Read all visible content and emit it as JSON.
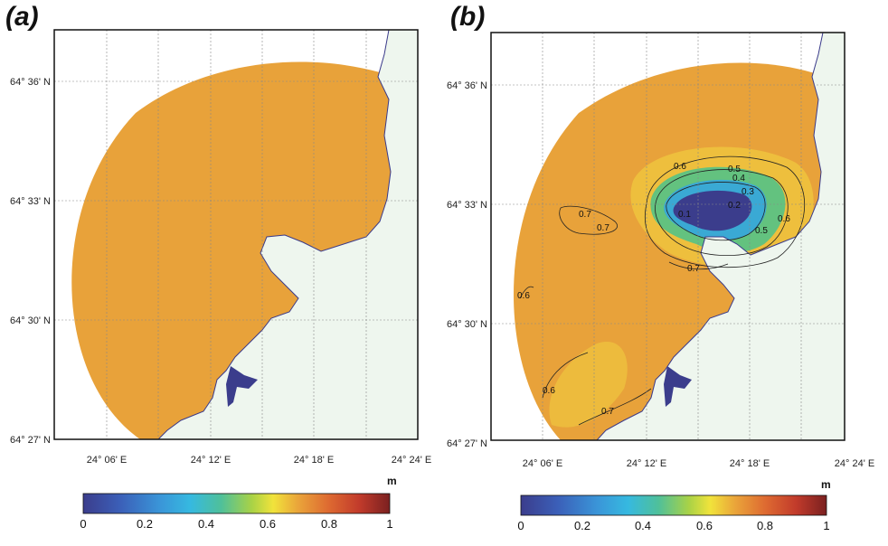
{
  "panels": [
    {
      "label": "(a)",
      "lat_ticks": [
        "64° 36' N",
        "64° 33' N",
        "64° 30' N",
        "64° 27' N"
      ],
      "lon_ticks": [
        "24° 06' E",
        "24° 12' E",
        "24° 18' E",
        "24° 24' E"
      ],
      "field_color": "#e8a23a",
      "colorbar": {
        "unit": "m",
        "ticks": [
          "0",
          "0.2",
          "0.4",
          "0.6",
          "0.8",
          "1"
        ]
      },
      "contour_labels": []
    },
    {
      "label": "(b)",
      "lat_ticks": [
        "64° 36' N",
        "64° 33' N",
        "64° 30' N",
        "64° 27' N"
      ],
      "lon_ticks": [
        "24° 06' E",
        "24° 12' E",
        "24° 18' E",
        "24° 24' E"
      ],
      "field_color": "#e8a23a",
      "colorbar": {
        "unit": "m",
        "ticks": [
          "0",
          "0.2",
          "0.4",
          "0.6",
          "0.8",
          "1"
        ]
      },
      "contour_labels": [
        "0.6",
        "0.5",
        "0.4",
        "0.3",
        "0.2",
        "0.1",
        "0.7",
        "0.7",
        "0.7",
        "0.7",
        "0.6",
        "0.6",
        "0.5",
        "0.6"
      ]
    }
  ],
  "colors": {
    "land": "#eef6ee",
    "coast": "#3a3a8a",
    "colormap": [
      "#3b3d8c",
      "#3a6bc4",
      "#3ab0e0",
      "#47c0a8",
      "#9fd24a",
      "#f2e33a",
      "#e8a23a",
      "#d9572e",
      "#b02a2a",
      "#7a1f1f"
    ]
  }
}
